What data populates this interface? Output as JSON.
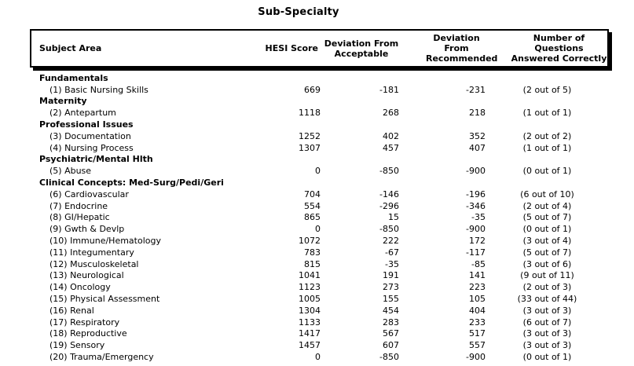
{
  "title": "Sub-Specialty",
  "colors": {
    "background": "#ffffff",
    "text": "#000000",
    "border": "#000000",
    "header_shadow": "#000000"
  },
  "table": {
    "headers": {
      "subject_area": "Subject Area",
      "hesi_score": "HESI Score",
      "deviation_from_acceptable": "Deviation From\nAcceptable",
      "deviation_from_recommended": "Deviation\nFrom\nRecommended",
      "questions_answered": "Number of\nQuestions\nAnswered Correctly"
    },
    "groups": [
      {
        "label": "Fundamentals",
        "items": [
          {
            "subject": "(1) Basic Nursing Skills",
            "hesi_score": "669",
            "deviation_from_acceptable": "-181",
            "deviation_from_recommended": "-231",
            "questions_answered": "(2 out of 5)"
          }
        ]
      },
      {
        "label": "Maternity",
        "items": [
          {
            "subject": "(2) Antepartum",
            "hesi_score": "1118",
            "deviation_from_acceptable": "268",
            "deviation_from_recommended": "218",
            "questions_answered": "(1 out of 1)"
          }
        ]
      },
      {
        "label": "Professional Issues",
        "items": [
          {
            "subject": "(3) Documentation",
            "hesi_score": "1252",
            "deviation_from_acceptable": "402",
            "deviation_from_recommended": "352",
            "questions_answered": "(2 out of 2)"
          },
          {
            "subject": "(4) Nursing Process",
            "hesi_score": "1307",
            "deviation_from_acceptable": "457",
            "deviation_from_recommended": "407",
            "questions_answered": "(1 out of 1)"
          }
        ]
      },
      {
        "label": "Psychiatric/Mental Hlth",
        "items": [
          {
            "subject": "(5) Abuse",
            "hesi_score": "0",
            "deviation_from_acceptable": "-850",
            "deviation_from_recommended": "-900",
            "questions_answered": "(0 out of 1)"
          }
        ]
      },
      {
        "label": "Clinical Concepts: Med-Surg/Pedi/Geri",
        "items": [
          {
            "subject": "(6) Cardiovascular",
            "hesi_score": "704",
            "deviation_from_acceptable": "-146",
            "deviation_from_recommended": "-196",
            "questions_answered": "(6 out of 10)"
          },
          {
            "subject": "(7) Endocrine",
            "hesi_score": "554",
            "deviation_from_acceptable": "-296",
            "deviation_from_recommended": "-346",
            "questions_answered": "(2 out of 4)"
          },
          {
            "subject": "(8) GI/Hepatic",
            "hesi_score": "865",
            "deviation_from_acceptable": "15",
            "deviation_from_recommended": "-35",
            "questions_answered": "(5 out of 7)"
          },
          {
            "subject": "(9) Gwth & Devlp",
            "hesi_score": "0",
            "deviation_from_acceptable": "-850",
            "deviation_from_recommended": "-900",
            "questions_answered": "(0 out of 1)"
          },
          {
            "subject": "(10) Immune/Hematology",
            "hesi_score": "1072",
            "deviation_from_acceptable": "222",
            "deviation_from_recommended": "172",
            "questions_answered": "(3 out of 4)"
          },
          {
            "subject": "(11) Integumentary",
            "hesi_score": "783",
            "deviation_from_acceptable": "-67",
            "deviation_from_recommended": "-117",
            "questions_answered": "(5 out of 7)"
          },
          {
            "subject": "(12) Musculoskeletal",
            "hesi_score": "815",
            "deviation_from_acceptable": "-35",
            "deviation_from_recommended": "-85",
            "questions_answered": "(3 out of 6)"
          },
          {
            "subject": "(13) Neurological",
            "hesi_score": "1041",
            "deviation_from_acceptable": "191",
            "deviation_from_recommended": "141",
            "questions_answered": "(9 out of 11)"
          },
          {
            "subject": "(14) Oncology",
            "hesi_score": "1123",
            "deviation_from_acceptable": "273",
            "deviation_from_recommended": "223",
            "questions_answered": "(2 out of 3)"
          },
          {
            "subject": "(15) Physical Assessment",
            "hesi_score": "1005",
            "deviation_from_acceptable": "155",
            "deviation_from_recommended": "105",
            "questions_answered": "(33 out of 44)"
          },
          {
            "subject": "(16) Renal",
            "hesi_score": "1304",
            "deviation_from_acceptable": "454",
            "deviation_from_recommended": "404",
            "questions_answered": "(3 out of 3)"
          },
          {
            "subject": "(17) Respiratory",
            "hesi_score": "1133",
            "deviation_from_acceptable": "283",
            "deviation_from_recommended": "233",
            "questions_answered": "(6 out of 7)"
          },
          {
            "subject": "(18) Reproductive",
            "hesi_score": "1417",
            "deviation_from_acceptable": "567",
            "deviation_from_recommended": "517",
            "questions_answered": "(3 out of 3)"
          },
          {
            "subject": "(19) Sensory",
            "hesi_score": "1457",
            "deviation_from_acceptable": "607",
            "deviation_from_recommended": "557",
            "questions_answered": "(3 out of 3)"
          },
          {
            "subject": "(20) Trauma/Emergency",
            "hesi_score": "0",
            "deviation_from_acceptable": "-850",
            "deviation_from_recommended": "-900",
            "questions_answered": "(0 out of 1)"
          }
        ]
      }
    ]
  }
}
